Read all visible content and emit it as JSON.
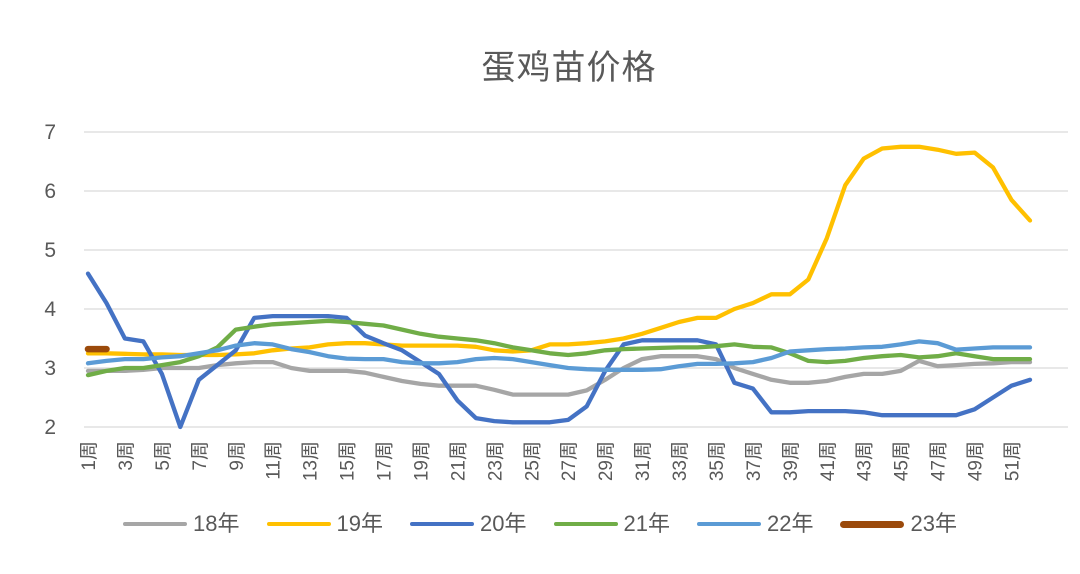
{
  "title": "蛋鸡苗价格",
  "colors": {
    "title_text": "#595959",
    "axis_text": "#595959",
    "gridline": "#D9D9D9",
    "background": "#FFFFFF"
  },
  "chart_data": {
    "type": "line",
    "title": "蛋鸡苗价格",
    "xlabel": "",
    "ylabel": "",
    "ylim": [
      2,
      7
    ],
    "y_ticks": [
      2,
      3,
      4,
      5,
      6,
      7
    ],
    "grid": true,
    "legend_position": "bottom",
    "x_tick_labels": [
      "1周",
      "3周",
      "5周",
      "7周",
      "9周",
      "11周",
      "13周",
      "15周",
      "17周",
      "19周",
      "21周",
      "23周",
      "25周",
      "27周",
      "29周",
      "31周",
      "33周",
      "35周",
      "37周",
      "39周",
      "41周",
      "43周",
      "45周",
      "47周",
      "49周",
      "51周"
    ],
    "x_weeks": 52,
    "series": [
      {
        "name": "18年",
        "color": "#A6A6A6",
        "line_width": 4.3,
        "values": [
          2.95,
          2.95,
          2.95,
          2.97,
          3.0,
          3.0,
          3.0,
          3.05,
          3.08,
          3.1,
          3.1,
          3.0,
          2.95,
          2.95,
          2.95,
          2.92,
          2.85,
          2.78,
          2.73,
          2.7,
          2.7,
          2.7,
          2.63,
          2.55,
          2.55,
          2.55,
          2.55,
          2.62,
          2.8,
          3.0,
          3.15,
          3.2,
          3.2,
          3.2,
          3.15,
          3.0,
          2.9,
          2.8,
          2.75,
          2.75,
          2.78,
          2.85,
          2.9,
          2.9,
          2.95,
          3.12,
          3.03,
          3.05,
          3.07,
          3.08,
          3.1,
          3.1
        ]
      },
      {
        "name": "19年",
        "color": "#FFC000",
        "line_width": 4.3,
        "values": [
          3.25,
          3.25,
          3.24,
          3.23,
          3.23,
          3.22,
          3.22,
          3.22,
          3.23,
          3.25,
          3.3,
          3.33,
          3.35,
          3.4,
          3.42,
          3.42,
          3.4,
          3.38,
          3.38,
          3.38,
          3.38,
          3.36,
          3.3,
          3.28,
          3.3,
          3.4,
          3.4,
          3.42,
          3.45,
          3.5,
          3.58,
          3.68,
          3.78,
          3.85,
          3.85,
          4.0,
          4.1,
          4.25,
          4.25,
          4.5,
          5.2,
          6.1,
          6.55,
          6.72,
          6.75,
          6.75,
          6.7,
          6.63,
          6.65,
          6.4,
          5.85,
          5.5
        ]
      },
      {
        "name": "20年",
        "color": "#4472C4",
        "line_width": 4.3,
        "values": [
          4.6,
          4.1,
          3.5,
          3.45,
          2.9,
          2.0,
          2.8,
          3.05,
          3.3,
          3.85,
          3.88,
          3.88,
          3.88,
          3.88,
          3.85,
          3.55,
          3.42,
          3.3,
          3.1,
          2.9,
          2.45,
          2.15,
          2.1,
          2.08,
          2.08,
          2.08,
          2.12,
          2.35,
          2.95,
          3.4,
          3.47,
          3.47,
          3.47,
          3.47,
          3.4,
          2.75,
          2.65,
          2.25,
          2.25,
          2.27,
          2.27,
          2.27,
          2.25,
          2.2,
          2.2,
          2.2,
          2.2,
          2.2,
          2.3,
          2.5,
          2.7,
          2.8
        ]
      },
      {
        "name": "21年",
        "color": "#70AD47",
        "line_width": 4.3,
        "values": [
          2.88,
          2.95,
          3.0,
          3.0,
          3.05,
          3.1,
          3.2,
          3.35,
          3.65,
          3.7,
          3.74,
          3.76,
          3.78,
          3.8,
          3.78,
          3.75,
          3.72,
          3.65,
          3.58,
          3.53,
          3.5,
          3.47,
          3.42,
          3.35,
          3.3,
          3.25,
          3.22,
          3.25,
          3.3,
          3.32,
          3.33,
          3.34,
          3.35,
          3.35,
          3.37,
          3.4,
          3.36,
          3.35,
          3.25,
          3.12,
          3.1,
          3.12,
          3.17,
          3.2,
          3.22,
          3.18,
          3.2,
          3.25,
          3.2,
          3.15,
          3.15,
          3.15
        ]
      },
      {
        "name": "22年",
        "color": "#5B9BD5",
        "line_width": 4.3,
        "values": [
          3.08,
          3.12,
          3.15,
          3.15,
          3.18,
          3.2,
          3.25,
          3.3,
          3.38,
          3.42,
          3.4,
          3.32,
          3.27,
          3.2,
          3.16,
          3.15,
          3.15,
          3.1,
          3.08,
          3.08,
          3.1,
          3.15,
          3.17,
          3.15,
          3.1,
          3.05,
          3.0,
          2.98,
          2.97,
          2.97,
          2.97,
          2.98,
          3.03,
          3.07,
          3.07,
          3.08,
          3.1,
          3.17,
          3.28,
          3.3,
          3.32,
          3.33,
          3.35,
          3.36,
          3.4,
          3.45,
          3.42,
          3.31,
          3.33,
          3.35,
          3.35,
          3.35
        ]
      },
      {
        "name": "23年",
        "color": "#9B4A0B",
        "line_width": 6.5,
        "values": [
          3.32,
          3.32
        ]
      }
    ]
  }
}
